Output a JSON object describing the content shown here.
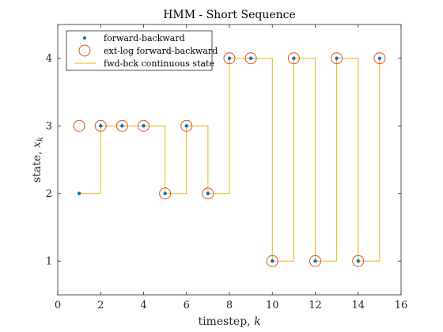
{
  "chart_data": {
    "type": "line",
    "title": "HMM - Short Sequence",
    "xlabel_text": "timestep, ",
    "xlabel_var": "k",
    "ylabel_text": "state, ",
    "ylabel_var": "x",
    "ylabel_sub": "k",
    "xlim": [
      0,
      16
    ],
    "ylim": [
      0.5,
      4.5
    ],
    "xticks": [
      0,
      2,
      4,
      6,
      8,
      10,
      12,
      14,
      16
    ],
    "yticks": [
      1,
      2,
      3,
      4
    ],
    "grid": false,
    "legend_position": "top-left",
    "series": [
      {
        "name": "forward-backward",
        "style": "dots",
        "color": "#0072BD",
        "x": [
          1,
          2,
          3,
          4,
          5,
          6,
          7,
          8,
          9,
          10,
          11,
          12,
          13,
          14,
          15
        ],
        "y": [
          2,
          3,
          3,
          3,
          2,
          3,
          2,
          4,
          4,
          1,
          4,
          1,
          4,
          1,
          4
        ]
      },
      {
        "name": "ext-log forward-backward",
        "style": "circles",
        "color": "#D95319",
        "x": [
          1,
          2,
          3,
          4,
          5,
          6,
          7,
          8,
          9,
          10,
          11,
          12,
          13,
          14,
          15
        ],
        "y": [
          3,
          3,
          3,
          3,
          2,
          3,
          2,
          4,
          4,
          1,
          4,
          1,
          4,
          1,
          4
        ]
      },
      {
        "name": "fwd-bck continuous state",
        "style": "step",
        "color": "#EDB120",
        "x": [
          1,
          2,
          3,
          4,
          5,
          6,
          7,
          8,
          9,
          10,
          11,
          12,
          13,
          14,
          15
        ],
        "y": [
          2,
          3,
          3,
          3,
          2,
          3,
          2,
          4,
          4,
          1,
          4,
          1,
          4,
          1,
          4
        ]
      }
    ]
  }
}
